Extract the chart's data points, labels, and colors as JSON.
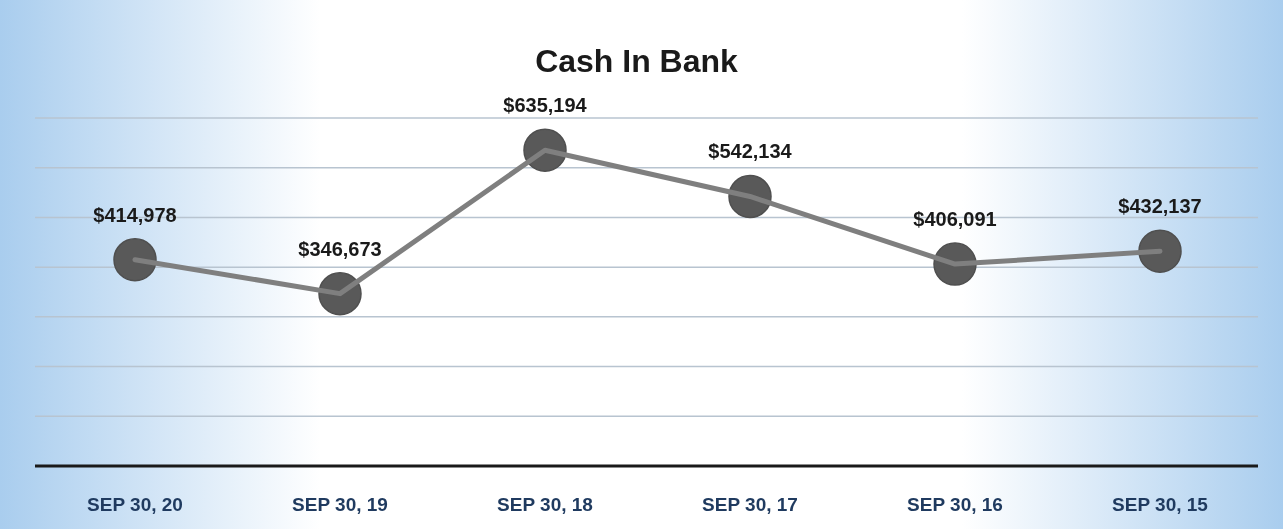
{
  "chart_data": {
    "type": "line",
    "title": "Cash In Bank",
    "categories": [
      "SEP 30, 20",
      "SEP 30, 19",
      "SEP 30, 18",
      "SEP 30, 17",
      "SEP 30, 16",
      "SEP 30, 15"
    ],
    "series": [
      {
        "color": "#7f7f7f",
        "values": [
          414978,
          346673,
          635194,
          542134,
          406091,
          432137
        ],
        "value_labels": [
          "$414,978",
          "$346,673",
          "$635,194",
          "$542,134",
          "$406,091",
          "$432,137"
        ]
      }
    ],
    "ylim": [
      0,
      700000
    ],
    "yticks": [
      {
        "value": 100000,
        "label": null
      },
      {
        "value": 200000,
        "label": null
      },
      {
        "value": 300000,
        "label": null
      },
      {
        "value": 400000,
        "label": null
      },
      {
        "value": 500000,
        "label": null
      },
      {
        "value": 600000,
        "label": null
      },
      {
        "value": 700000,
        "label": null
      }
    ],
    "tick_labels": "x",
    "grid": "y",
    "marker": "circle",
    "line_style": "solid"
  }
}
